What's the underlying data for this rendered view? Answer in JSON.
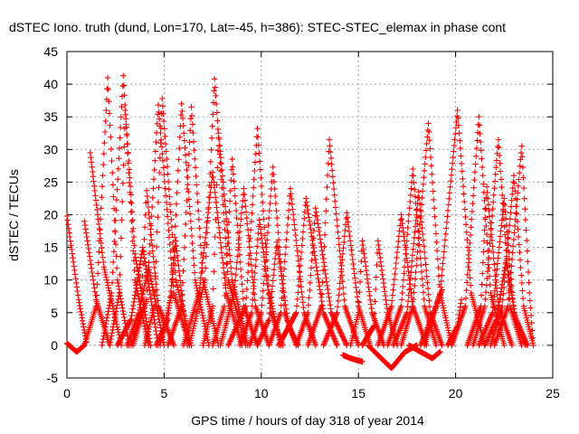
{
  "chart_data": {
    "type": "scatter",
    "title": "dSTEC Iono. truth (dund, Lon=170, Lat=-45, h=386): STEC-STEC_elemax in phase cont",
    "xlabel": "GPS time / hours of day 318 of year 2014",
    "ylabel": "dSTEC  / TECUs",
    "xlim": [
      0,
      25
    ],
    "ylim": [
      -5,
      45
    ],
    "xticks": [
      0,
      5,
      10,
      15,
      20,
      25
    ],
    "yticks": [
      -5,
      0,
      5,
      10,
      15,
      20,
      25,
      30,
      35,
      40,
      45
    ],
    "grid": true,
    "legend": "none",
    "marker": "plus",
    "color": "#ff0000",
    "passes": [
      [
        [
          0.0,
          19.8
        ],
        [
          0.6,
          7.0
        ],
        [
          1.0,
          0.5
        ]
      ],
      [
        [
          0.0,
          0.3
        ],
        [
          0.5,
          -1.0
        ],
        [
          0.9,
          0.0
        ],
        [
          1.5,
          6.0
        ],
        [
          2.1,
          41.0
        ],
        [
          2.6,
          10.0
        ],
        [
          3.2,
          0.0
        ]
      ],
      [
        [
          0.9,
          19.0
        ],
        [
          1.5,
          7.0
        ],
        [
          2.2,
          0.0
        ]
      ],
      [
        [
          1.2,
          29.5
        ],
        [
          1.9,
          12.0
        ],
        [
          2.8,
          0.0
        ]
      ],
      [
        [
          1.8,
          0.0
        ],
        [
          2.3,
          8.0
        ],
        [
          2.9,
          41.3
        ],
        [
          3.5,
          10.0
        ],
        [
          4.2,
          0.0
        ]
      ],
      [
        [
          2.2,
          0.0
        ],
        [
          2.7,
          8.0
        ],
        [
          3.0,
          36.0
        ],
        [
          3.5,
          14.0
        ],
        [
          4.3,
          0.0
        ]
      ],
      [
        [
          2.6,
          0.0
        ],
        [
          3.3,
          4.0
        ],
        [
          3.9,
          15.0
        ],
        [
          4.7,
          0.0
        ]
      ],
      [
        [
          3.1,
          0.0
        ],
        [
          3.7,
          5.0
        ],
        [
          4.2,
          12.0
        ],
        [
          5.0,
          0.0
        ]
      ],
      [
        [
          3.3,
          0.0
        ],
        [
          3.8,
          5.0
        ],
        [
          4.1,
          23.7
        ],
        [
          4.7,
          6.0
        ],
        [
          5.5,
          0.0
        ]
      ],
      [
        [
          3.4,
          0.0
        ],
        [
          4.1,
          7.0
        ],
        [
          4.7,
          36.8
        ],
        [
          5.5,
          8.0
        ],
        [
          6.3,
          0.0
        ]
      ],
      [
        [
          4.0,
          0.0
        ],
        [
          4.5,
          6.0
        ],
        [
          4.9,
          37.8
        ],
        [
          5.6,
          10.0
        ],
        [
          6.4,
          0.0
        ]
      ],
      [
        [
          4.6,
          0.0
        ],
        [
          5.2,
          4.0
        ],
        [
          5.6,
          16.0
        ],
        [
          6.2,
          0.0
        ]
      ],
      [
        [
          4.8,
          0.0
        ],
        [
          5.4,
          8.0
        ],
        [
          5.9,
          37.0
        ],
        [
          6.6,
          10.0
        ],
        [
          7.3,
          0.0
        ]
      ],
      [
        [
          5.2,
          0.0
        ],
        [
          5.9,
          6.0
        ],
        [
          6.4,
          36.5
        ],
        [
          7.0,
          10.0
        ],
        [
          7.8,
          0.0
        ]
      ],
      [
        [
          6.0,
          0.0
        ],
        [
          6.8,
          8.0
        ],
        [
          7.5,
          26.5
        ],
        [
          8.2,
          8.0
        ],
        [
          9.0,
          0.0
        ]
      ],
      [
        [
          6.3,
          0.0
        ],
        [
          7.1,
          10.0
        ],
        [
          7.6,
          40.8
        ],
        [
          8.3,
          10.0
        ],
        [
          9.2,
          0.0
        ]
      ],
      [
        [
          7.0,
          0.0
        ],
        [
          7.5,
          6.0
        ],
        [
          7.8,
          32.5
        ],
        [
          8.5,
          10.0
        ],
        [
          9.3,
          0.0
        ]
      ],
      [
        [
          7.5,
          0.0
        ],
        [
          8.1,
          6.0
        ],
        [
          8.5,
          28.5
        ],
        [
          9.1,
          6.0
        ],
        [
          9.8,
          0.0
        ]
      ],
      [
        [
          7.9,
          0.0
        ],
        [
          8.6,
          8.0
        ],
        [
          9.1,
          24.0
        ],
        [
          9.7,
          6.0
        ],
        [
          10.4,
          0.0
        ]
      ],
      [
        [
          8.3,
          0.0
        ],
        [
          9.2,
          6.0
        ],
        [
          9.8,
          33.2
        ],
        [
          10.4,
          8.0
        ],
        [
          11.0,
          0.0
        ]
      ],
      [
        [
          8.9,
          0.0
        ],
        [
          9.5,
          5.0
        ],
        [
          9.9,
          19.2
        ],
        [
          10.5,
          5.0
        ],
        [
          11.1,
          0.0
        ]
      ],
      [
        [
          9.4,
          0.0
        ],
        [
          10.0,
          5.0
        ],
        [
          10.6,
          27.3
        ],
        [
          11.2,
          5.0
        ],
        [
          11.8,
          0.0
        ]
      ],
      [
        [
          9.8,
          0.0
        ],
        [
          10.4,
          4.0
        ],
        [
          10.8,
          15.8
        ],
        [
          11.4,
          3.0
        ],
        [
          11.9,
          0.0
        ]
      ],
      [
        [
          10.4,
          0.0
        ],
        [
          11.0,
          5.0
        ],
        [
          11.5,
          24.0
        ],
        [
          12.2,
          5.0
        ],
        [
          12.8,
          0.0
        ]
      ],
      [
        [
          10.9,
          0.0
        ],
        [
          11.8,
          5.0
        ],
        [
          12.3,
          22.5
        ],
        [
          13.2,
          5.0
        ],
        [
          13.9,
          0.0
        ]
      ],
      [
        [
          11.8,
          0.0
        ],
        [
          12.4,
          5.0
        ],
        [
          12.8,
          21.0
        ],
        [
          13.6,
          5.0
        ],
        [
          14.4,
          0.0
        ]
      ],
      [
        [
          12.4,
          0.0
        ],
        [
          13.1,
          6.0
        ],
        [
          13.5,
          31.5
        ],
        [
          14.3,
          6.0
        ],
        [
          15.0,
          0.0
        ]
      ],
      [
        [
          13.2,
          0.0
        ],
        [
          13.9,
          5.0
        ],
        [
          14.4,
          20.3
        ],
        [
          15.0,
          6.0
        ],
        [
          15.6,
          0.0
        ]
      ],
      [
        [
          14.2,
          -1.5
        ],
        [
          14.6,
          -2.0
        ],
        [
          15.2,
          -2.5
        ]
      ],
      [
        [
          14.6,
          0.0
        ],
        [
          15.0,
          5.0
        ],
        [
          15.2,
          16.0
        ],
        [
          15.7,
          5.0
        ],
        [
          16.3,
          0.0
        ]
      ],
      [
        [
          15.2,
          0.0
        ],
        [
          15.8,
          3.0
        ],
        [
          16.0,
          16.0
        ],
        [
          16.5,
          5.0
        ],
        [
          17.0,
          0.0
        ]
      ],
      [
        [
          15.5,
          0.0
        ],
        [
          16.0,
          -1.5
        ],
        [
          16.7,
          -3.5
        ],
        [
          17.4,
          -1.0
        ],
        [
          18.0,
          0.0
        ]
      ],
      [
        [
          16.0,
          0.0
        ],
        [
          16.7,
          6.0
        ],
        [
          17.2,
          20.0
        ],
        [
          17.8,
          6.0
        ],
        [
          18.5,
          0.0
        ]
      ],
      [
        [
          16.5,
          0.0
        ],
        [
          17.2,
          6.0
        ],
        [
          17.8,
          27.0
        ],
        [
          18.4,
          6.0
        ],
        [
          19.0,
          0.0
        ]
      ],
      [
        [
          16.8,
          0.0
        ],
        [
          17.5,
          5.0
        ],
        [
          18.1,
          23.5
        ],
        [
          18.7,
          5.0
        ],
        [
          19.3,
          0.0
        ]
      ],
      [
        [
          17.2,
          0.0
        ],
        [
          17.8,
          6.0
        ],
        [
          18.6,
          34.0
        ],
        [
          19.2,
          8.0
        ],
        [
          19.8,
          0.0
        ]
      ],
      [
        [
          17.6,
          0.0
        ],
        [
          18.2,
          -1.0
        ],
        [
          18.8,
          -2.0
        ],
        [
          19.2,
          -1.0
        ]
      ],
      [
        [
          18.2,
          0.0
        ],
        [
          19.0,
          6.0
        ],
        [
          19.3,
          8.5
        ]
      ],
      [
        [
          18.4,
          0.0
        ],
        [
          19.2,
          8.0
        ],
        [
          20.1,
          36.0
        ],
        [
          20.8,
          8.0
        ],
        [
          21.5,
          0.0
        ]
      ],
      [
        [
          19.6,
          0.0
        ],
        [
          20.1,
          3.0
        ],
        [
          20.3,
          7.0
        ]
      ],
      [
        [
          19.8,
          0.0
        ],
        [
          20.5,
          6.0
        ],
        [
          21.2,
          35.0
        ],
        [
          21.8,
          8.0
        ],
        [
          22.5,
          0.0
        ]
      ],
      [
        [
          20.6,
          0.0
        ],
        [
          21.3,
          6.0
        ],
        [
          21.6,
          24.3
        ],
        [
          22.2,
          6.0
        ],
        [
          22.9,
          0.0
        ]
      ],
      [
        [
          20.9,
          0.0
        ],
        [
          21.5,
          6.0
        ],
        [
          22.2,
          31.5
        ],
        [
          22.8,
          6.0
        ],
        [
          23.4,
          0.0
        ]
      ],
      [
        [
          21.2,
          0.0
        ],
        [
          21.9,
          5.0
        ],
        [
          22.5,
          22.5
        ],
        [
          23.0,
          5.0
        ],
        [
          23.6,
          0.0
        ]
      ],
      [
        [
          21.5,
          0.0
        ],
        [
          22.1,
          4.0
        ],
        [
          22.6,
          13.0
        ],
        [
          23.1,
          4.0
        ],
        [
          23.7,
          0.0
        ]
      ],
      [
        [
          21.8,
          0.0
        ],
        [
          22.4,
          6.0
        ],
        [
          23.0,
          26.0
        ],
        [
          23.5,
          6.0
        ],
        [
          24.0,
          0.0
        ]
      ],
      [
        [
          22.0,
          0.0
        ],
        [
          22.7,
          6.0
        ],
        [
          23.4,
          30.5
        ],
        [
          23.8,
          8.0
        ],
        [
          24.0,
          0.0
        ]
      ]
    ]
  }
}
